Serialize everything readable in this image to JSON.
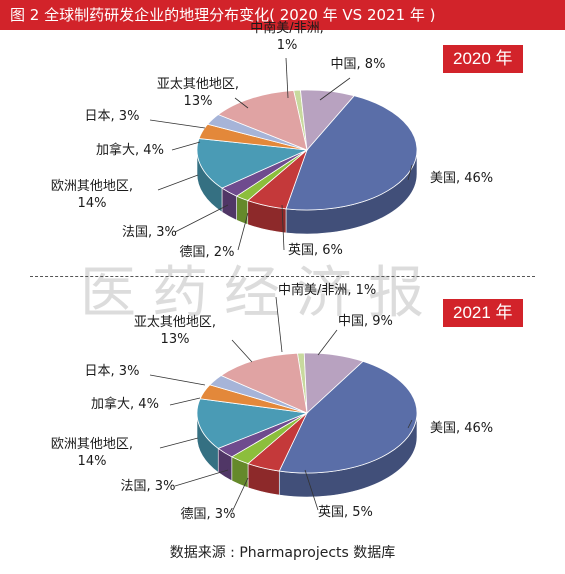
{
  "title": "图 2    全球制药研发企业的地理分布变化( 2020 年 VS  2021 年 )",
  "source": "数据来源 : Pharmaprojects 数据库",
  "watermark": "医药经济报",
  "colors": {
    "title_bar": "#d2232a",
    "badge": "#d2232a"
  },
  "chart_data": [
    {
      "type": "pie",
      "title": "2020 年",
      "categories": [
        "中南美/非洲",
        "中国",
        "美国",
        "英国",
        "德国",
        "法国",
        "欧洲其他地区",
        "加拿大",
        "日本",
        "亚太其他地区"
      ],
      "values": [
        1,
        8,
        46,
        6,
        2,
        3,
        14,
        4,
        3,
        13
      ],
      "colors": [
        "#c8d99e",
        "#b8a2c0",
        "#5a6ea8",
        "#c4393a",
        "#8cbe3c",
        "#6f4b8e",
        "#4a9bb5",
        "#e3883a",
        "#a6b4d8",
        "#e0a3a3"
      ],
      "labels": [
        "中南美/非洲,\n1%",
        "中国, 8%",
        "美国, 46%",
        "英国, 6%",
        "德国, 2%",
        "法国, 3%",
        "欧洲其他地区,\n14%",
        "加拿大, 4%",
        "日本, 3%",
        "亚太其他地区,\n13%"
      ]
    },
    {
      "type": "pie",
      "title": "2021 年",
      "categories": [
        "中南美/非洲",
        "中国",
        "美国",
        "英国",
        "德国",
        "法国",
        "欧洲其他地区",
        "加拿大",
        "日本",
        "亚太其他地区"
      ],
      "values": [
        1,
        9,
        46,
        5,
        3,
        3,
        14,
        4,
        3,
        13
      ],
      "colors": [
        "#c8d99e",
        "#b8a2c0",
        "#5a6ea8",
        "#c4393a",
        "#8cbe3c",
        "#6f4b8e",
        "#4a9bb5",
        "#e3883a",
        "#a6b4d8",
        "#e0a3a3"
      ],
      "labels": [
        "中南美/非洲, 1%",
        "中国, 9%",
        "美国, 46%",
        "英国, 5%",
        "德国, 3%",
        "法国, 3%",
        "欧洲其他地区,\n14%",
        "加拿大, 4%",
        "日本, 3%",
        "亚太其他地区,\n13%"
      ]
    }
  ]
}
